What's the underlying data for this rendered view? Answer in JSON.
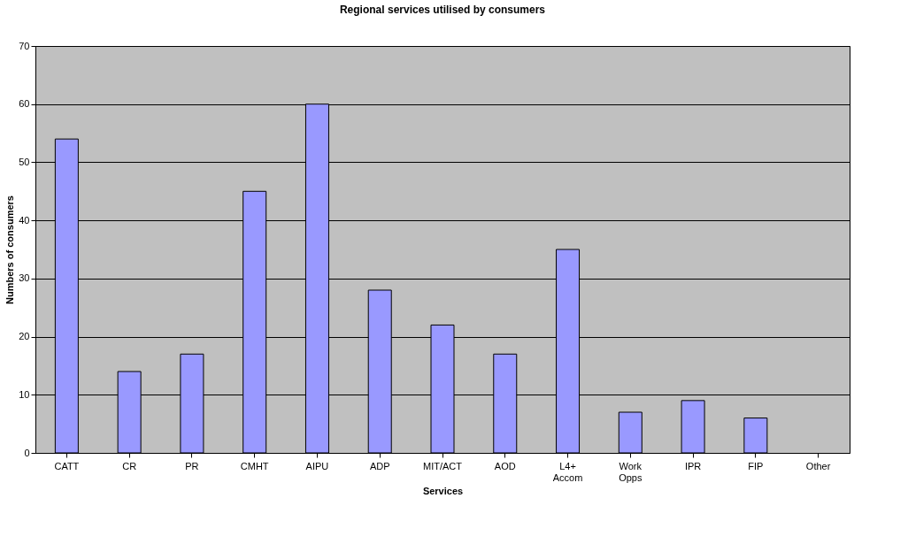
{
  "chart_data": {
    "type": "bar",
    "title": "Regional services utilised by consumers",
    "xlabel": "Services",
    "ylabel": "Numbers of consumers",
    "categories": [
      "CATT",
      "CR",
      "PR",
      "CMHT",
      "AIPU",
      "ADP",
      "MIT/ACT",
      "AOD",
      "L4+ Accom",
      "Work Opps",
      "IPR",
      "FIP",
      "Other"
    ],
    "values": [
      54,
      14,
      17,
      45,
      60,
      28,
      22,
      17,
      35,
      7,
      9,
      6,
      0
    ],
    "color": "#9999ff",
    "ylim": [
      0,
      70
    ],
    "yticks": [
      0,
      10,
      20,
      30,
      40,
      50,
      60,
      70
    ],
    "grid": "y"
  }
}
